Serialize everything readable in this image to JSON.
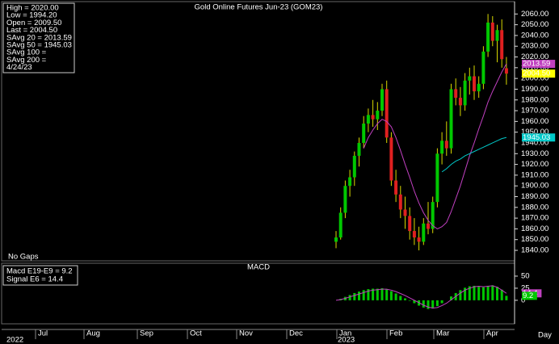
{
  "chart_data": [
    {
      "type": "candlestick",
      "title": "Gold Online Futures Jun-23 (GOM23)",
      "note": "No Gaps",
      "legend": [
        {
          "text": "High   = 2020.00",
          "color": "#ffff00"
        },
        {
          "text": "Low    = 1994.20",
          "color": "#ffff00"
        },
        {
          "text": "Open  = 2009.50",
          "color": "#00ff00"
        },
        {
          "text": "Last   = 2004.50",
          "color": "#ff2020"
        },
        {
          "text": "SAvg 20 = 2013.59",
          "color": "#ff40ff"
        },
        {
          "text": "SAvg 50 = 1945.03",
          "color": "#00ffff"
        },
        {
          "text": "SAvg 100 =",
          "color": "#ffffff"
        },
        {
          "text": "SAvg 200 =",
          "color": "#ff40ff"
        },
        {
          "text": "4/24/23",
          "color": "#ffffff"
        }
      ],
      "up_color": "#00c800",
      "down_color": "#e02020",
      "wick_color": "#d8d800",
      "open": [
        1848,
        1852,
        1875,
        1900,
        1908,
        1928,
        1940,
        1958,
        1966,
        1962,
        1970,
        1990,
        1945,
        1905,
        1892,
        1878,
        1872,
        1858,
        1852,
        1848,
        1865,
        1860,
        1885,
        1930,
        1942,
        1935,
        1990,
        1982,
        1975,
        1998,
        2002,
        1988,
        1995,
        2025,
        2052,
        2035,
        2045,
        2009.5
      ],
      "high": [
        1858,
        1880,
        1905,
        1915,
        1932,
        1945,
        1965,
        1972,
        1980,
        1978,
        1995,
        1998,
        1950,
        1915,
        1900,
        1890,
        1880,
        1870,
        1862,
        1870,
        1885,
        1890,
        1935,
        1950,
        1960,
        1995,
        2000,
        1992,
        2005,
        2010,
        2012,
        2002,
        2030,
        2060,
        2058,
        2050,
        2055,
        2020
      ],
      "low": [
        1842,
        1850,
        1870,
        1890,
        1900,
        1918,
        1935,
        1950,
        1955,
        1952,
        1965,
        1940,
        1900,
        1885,
        1870,
        1860,
        1850,
        1845,
        1840,
        1845,
        1855,
        1856,
        1880,
        1920,
        1928,
        1930,
        1975,
        1965,
        1970,
        1985,
        1980,
        1982,
        1990,
        2020,
        2030,
        2015,
        2010,
        1994.2
      ],
      "close": [
        1852,
        1875,
        1900,
        1908,
        1928,
        1940,
        1958,
        1966,
        1962,
        1970,
        1990,
        1945,
        1905,
        1892,
        1878,
        1872,
        1858,
        1852,
        1848,
        1865,
        1860,
        1885,
        1930,
        1942,
        1935,
        1990,
        1982,
        1975,
        1998,
        2002,
        1988,
        1995,
        2025,
        2052,
        2035,
        2045,
        2018,
        2004.5
      ],
      "series": [
        {
          "name": "SAvg 20",
          "color": "#c040c0",
          "values": [
            null,
            null,
            null,
            null,
            null,
            null,
            1935,
            1945,
            1952,
            1958,
            1962,
            1960,
            1955,
            1945,
            1933,
            1920,
            1908,
            1895,
            1884,
            1875,
            1868,
            1863,
            1860,
            1862,
            1866,
            1876,
            1888,
            1900,
            1914,
            1928,
            1940,
            1953,
            1965,
            1978,
            1988,
            1997,
            2006,
            2013.59
          ]
        },
        {
          "name": "SAvg 50",
          "color": "#00c8c8",
          "values": [
            null,
            null,
            null,
            null,
            null,
            null,
            null,
            null,
            null,
            null,
            null,
            null,
            null,
            null,
            null,
            null,
            null,
            null,
            null,
            null,
            null,
            null,
            null,
            1913,
            1916,
            1920,
            1923,
            1925,
            1928,
            1930,
            1932,
            1934,
            1936,
            1938,
            1940,
            1942,
            1944,
            1945.03
          ]
        }
      ],
      "markers": [
        {
          "value": 2013.59,
          "label": "2013.59",
          "color": "#c040c0"
        },
        {
          "value": 1945.03,
          "label": "1945.03",
          "color": "#00c8c8"
        },
        {
          "value": 2004.5,
          "label": "2004.50",
          "color": "#ffff00"
        }
      ],
      "ylim": [
        1831,
        2067
      ],
      "yticks": [
        {
          "value": 1840,
          "label": "1840.00"
        },
        {
          "value": 1850,
          "label": "1850.00"
        },
        {
          "value": 1860,
          "label": "1860.00"
        },
        {
          "value": 1870,
          "label": "1870.00"
        },
        {
          "value": 1880,
          "label": "1880.00"
        },
        {
          "value": 1890,
          "label": "1890.00"
        },
        {
          "value": 1900,
          "label": "1900.00"
        },
        {
          "value": 1910,
          "label": "1910.00"
        },
        {
          "value": 1920,
          "label": "1920.00"
        },
        {
          "value": 1930,
          "label": "1930.00"
        },
        {
          "value": 1940,
          "label": "1940.00"
        },
        {
          "value": 1950,
          "label": "1950.00"
        },
        {
          "value": 1960,
          "label": "1960.00"
        },
        {
          "value": 1970,
          "label": "1970.00"
        },
        {
          "value": 1980,
          "label": "1980.00"
        },
        {
          "value": 1990,
          "label": "1990.00"
        },
        {
          "value": 2000,
          "label": "2000.00"
        },
        {
          "value": 2010,
          "label": "2010.00"
        },
        {
          "value": 2020,
          "label": "2020.00"
        },
        {
          "value": 2030,
          "label": "2030.00"
        },
        {
          "value": 2040,
          "label": "2040.00"
        },
        {
          "value": 2050,
          "label": "2050.00"
        },
        {
          "value": 2060,
          "label": "2060.00"
        }
      ]
    },
    {
      "type": "macd",
      "title": "MACD",
      "legend": [
        {
          "text": "Macd E19-E9 = 9.2",
          "color": "#00ff00"
        },
        {
          "text": "Signal E6 = 14.4",
          "color": "#ff40ff"
        }
      ],
      "series": [
        {
          "name": "Macd E19-E9",
          "color": "#00c800",
          "values": [
            0,
            3,
            7,
            11,
            15,
            18,
            21,
            23,
            24,
            24,
            25,
            23,
            19,
            14,
            9,
            4,
            -1,
            -6,
            -11,
            -15,
            -18,
            -17,
            -12,
            -6,
            0,
            8,
            15,
            21,
            26,
            29,
            30,
            28,
            27,
            30,
            31,
            28,
            22,
            9.2
          ]
        },
        {
          "name": "Signal E6",
          "color": "#c040c0",
          "values": [
            0,
            1.5,
            4,
            7,
            10,
            13,
            16,
            19,
            21,
            22,
            23,
            23,
            21,
            18,
            14,
            10,
            5,
            0,
            -5,
            -10,
            -14,
            -16,
            -15,
            -11,
            -6,
            1,
            8,
            15,
            21,
            25,
            28,
            29,
            28,
            29,
            30,
            27,
            21,
            14.4
          ]
        }
      ],
      "markers": [
        {
          "value": 14.4,
          "label": "14.4",
          "color": "#c040c0"
        },
        {
          "value": 9.2,
          "label": "9.2",
          "color": "#00c800"
        }
      ],
      "ylim": [
        -47,
        75
      ],
      "yticks": [
        50,
        25,
        0
      ]
    }
  ],
  "time_axis": {
    "months": [
      "Jul",
      "Aug",
      "Sep",
      "Oct",
      "Nov",
      "Dec",
      "Jan",
      "Feb",
      "Mar",
      "Apr"
    ],
    "years": [
      "2022",
      "2023"
    ],
    "unit": "Day"
  }
}
